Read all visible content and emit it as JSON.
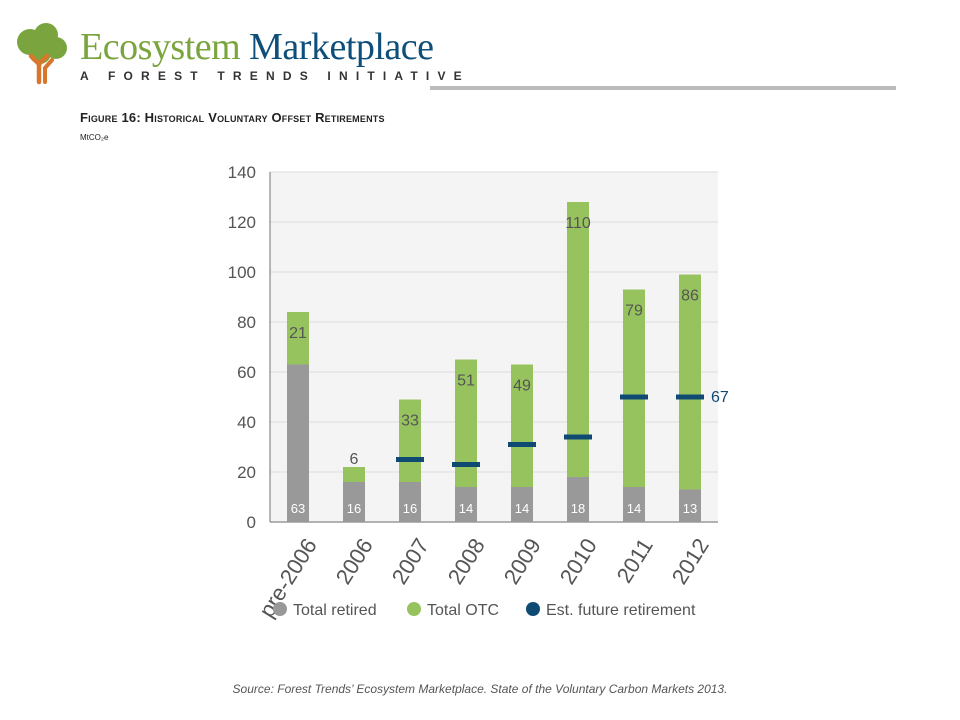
{
  "brand": {
    "name_part1": "Ecosystem",
    "name_part2": "Marketplace",
    "tagline": "A FOREST TRENDS INITIATIVE"
  },
  "figure": {
    "title": "Figure 16: Historical Voluntary Offset Retirements",
    "unit": "MtCO₂e",
    "source": "Source: Forest Trends’ Ecosystem Marketplace. State of the Voluntary Carbon Markets 2013."
  },
  "icons": [
    "tree-logo-icon"
  ],
  "colors": {
    "retired": "#999999",
    "otc": "#97c35e",
    "future": "#0f4a73",
    "label_dark": "#555555",
    "label_light": "#ffffff",
    "brand_green": "#7aa43d",
    "brand_blue": "#0d4f7a"
  },
  "chart_data": {
    "type": "bar",
    "stacked": true,
    "categories": [
      "pre-2006",
      "2006",
      "2007",
      "2008",
      "2009",
      "2010",
      "2011",
      "2012"
    ],
    "series": [
      {
        "name": "Total retired",
        "values": [
          63,
          16,
          16,
          14,
          14,
          18,
          14,
          13
        ]
      },
      {
        "name": "Total OTC",
        "values": [
          21,
          6,
          33,
          51,
          49,
          110,
          79,
          86
        ]
      }
    ],
    "markers": {
      "name": "Est. future retirement",
      "values": [
        null,
        null,
        25,
        23,
        31,
        34,
        50,
        50
      ],
      "labeled_value": "67"
    },
    "ylim": [
      0,
      140
    ],
    "yticks": [
      0,
      20,
      40,
      60,
      80,
      100,
      120,
      140
    ],
    "grid": true,
    "legend": "bottom"
  }
}
